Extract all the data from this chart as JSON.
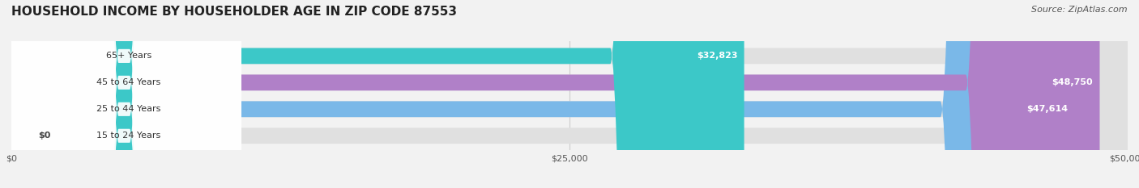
{
  "title": "HOUSEHOLD INCOME BY HOUSEHOLDER AGE IN ZIP CODE 87553",
  "source": "Source: ZipAtlas.com",
  "categories": [
    "15 to 24 Years",
    "25 to 44 Years",
    "45 to 64 Years",
    "65+ Years"
  ],
  "values": [
    0,
    47614,
    48750,
    32823
  ],
  "bar_colors": [
    "#f0a0a0",
    "#7ab8e8",
    "#b080c8",
    "#3cc8c8"
  ],
  "bar_labels": [
    "$0",
    "$47,614",
    "$48,750",
    "$32,823"
  ],
  "xlim": [
    0,
    50000
  ],
  "xticks": [
    0,
    25000,
    50000
  ],
  "xtick_labels": [
    "$0",
    "$25,000",
    "$50,000"
  ],
  "background_color": "#f2f2f2",
  "bar_bg_color": "#e0e0e0",
  "label_bg_color": "#ffffff",
  "title_fontsize": 11,
  "source_fontsize": 8,
  "bar_label_fontsize": 8,
  "cat_label_fontsize": 8
}
